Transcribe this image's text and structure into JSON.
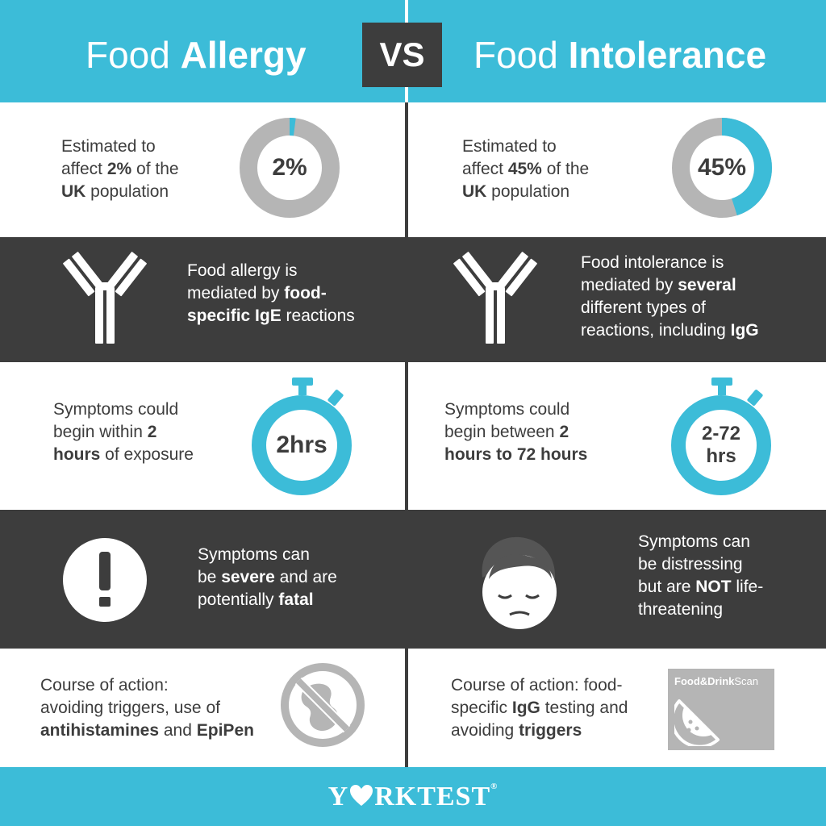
{
  "header": {
    "left_title_light": "Food ",
    "left_title_bold": "Allergy",
    "vs": "VS",
    "right_title_light": "Food ",
    "right_title_bold": "Intolerance"
  },
  "colors": {
    "teal": "#3cbcd8",
    "dark": "#3d3d3d",
    "grey": "#b5b5b5",
    "white": "#ffffff"
  },
  "allergy": {
    "prevalence": {
      "line1": "Estimated to",
      "line2_pre": "affect ",
      "line2_bold": "2%",
      "line2_post": " of the",
      "line3_bold": "UK",
      "line3_post": " population",
      "ring_label": "2%",
      "percent": 2
    },
    "mechanism": {
      "line1": "Food allergy is",
      "line2_pre": "mediated by ",
      "line2_bold": "food-",
      "line3_bold": "specific IgE",
      "line3_post": " reactions",
      "icon": "antibody-icon"
    },
    "onset": {
      "line1": "Symptoms could",
      "line2_pre": "begin within ",
      "line2_bold": "2",
      "line3_bold": "hours",
      "line3_post": " of exposure",
      "timer_label": "2hrs",
      "icon": "stopwatch-icon"
    },
    "severity": {
      "line1": "Symptoms can",
      "line2_pre": "be ",
      "line2_bold": "severe",
      "line2_post": " and are",
      "line3_pre": "potentially ",
      "line3_bold": "fatal",
      "icon": "exclamation-icon"
    },
    "action": {
      "line1": "Course of action:",
      "line2": "avoiding triggers, use of",
      "line3_bold1": "antihistamines",
      "line3_mid": " and ",
      "line3_bold2": "EpiPen",
      "icon": "no-peanut-icon"
    }
  },
  "intolerance": {
    "prevalence": {
      "line1": "Estimated to",
      "line2_pre": "affect ",
      "line2_bold": "45%",
      "line2_post": " of the",
      "line3_bold": "UK",
      "line3_post": " population",
      "ring_label": "45%",
      "percent": 45
    },
    "mechanism": {
      "line1": "Food intolerance is",
      "line2_pre": "mediated by ",
      "line2_bold": "several",
      "line3": "different types of",
      "line4_pre": "reactions, including ",
      "line4_bold": "IgG",
      "icon": "antibody-icon"
    },
    "onset": {
      "line1": "Symptoms could",
      "line2_pre": "begin between ",
      "line2_bold": "2",
      "line3_bold": "hours to 72 hours",
      "timer_label_1": "2-72",
      "timer_label_2": "hrs",
      "icon": "stopwatch-icon"
    },
    "severity": {
      "line1": "Symptoms can",
      "line2": "be distressing",
      "line3_pre": "but are ",
      "line3_bold": "NOT",
      "line3_post": " life-",
      "line4": "threatening",
      "icon": "unwell-face-icon"
    },
    "action": {
      "line1": "Course of action: food-",
      "line2_pre": "specific ",
      "line2_bold": "IgG",
      "line2_post": " testing and",
      "line3_pre": "avoiding ",
      "line3_bold": "triggers",
      "scan_bold": "Food&Drink",
      "scan_light": "Scan",
      "icon": "watermelon-icon"
    }
  },
  "footer": {
    "logo_y": "Y",
    "logo_rest": "RKTEST",
    "logo_mark": "®"
  }
}
